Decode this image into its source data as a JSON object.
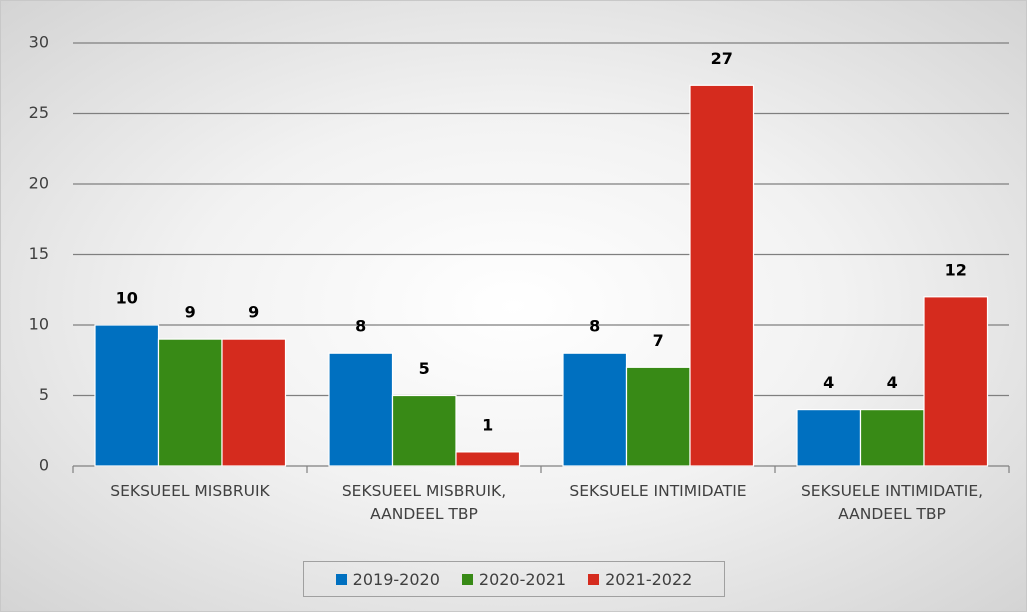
{
  "chart_data": {
    "type": "bar",
    "categories": [
      "SEKSUEEL MISBRUIK",
      "SEKSUEEL MISBRUIK, AANDEEL TBP",
      "SEKSUELE INTIMIDATIE",
      "SEKSUELE INTIMIDATIE, AANDEEL TBP"
    ],
    "series": [
      {
        "name": "2019-2020",
        "color": "#0070c0",
        "values": [
          10,
          8,
          8,
          4
        ]
      },
      {
        "name": "2020-2021",
        "color": "#388a16",
        "values": [
          9,
          5,
          7,
          4
        ]
      },
      {
        "name": "2021-2022",
        "color": "#d52b1e",
        "values": [
          9,
          1,
          27,
          12
        ]
      }
    ],
    "ylim": [
      0,
      30
    ],
    "yticks": [
      0,
      5,
      10,
      15,
      20,
      25,
      30
    ],
    "grid": true,
    "legend": "bottom"
  }
}
